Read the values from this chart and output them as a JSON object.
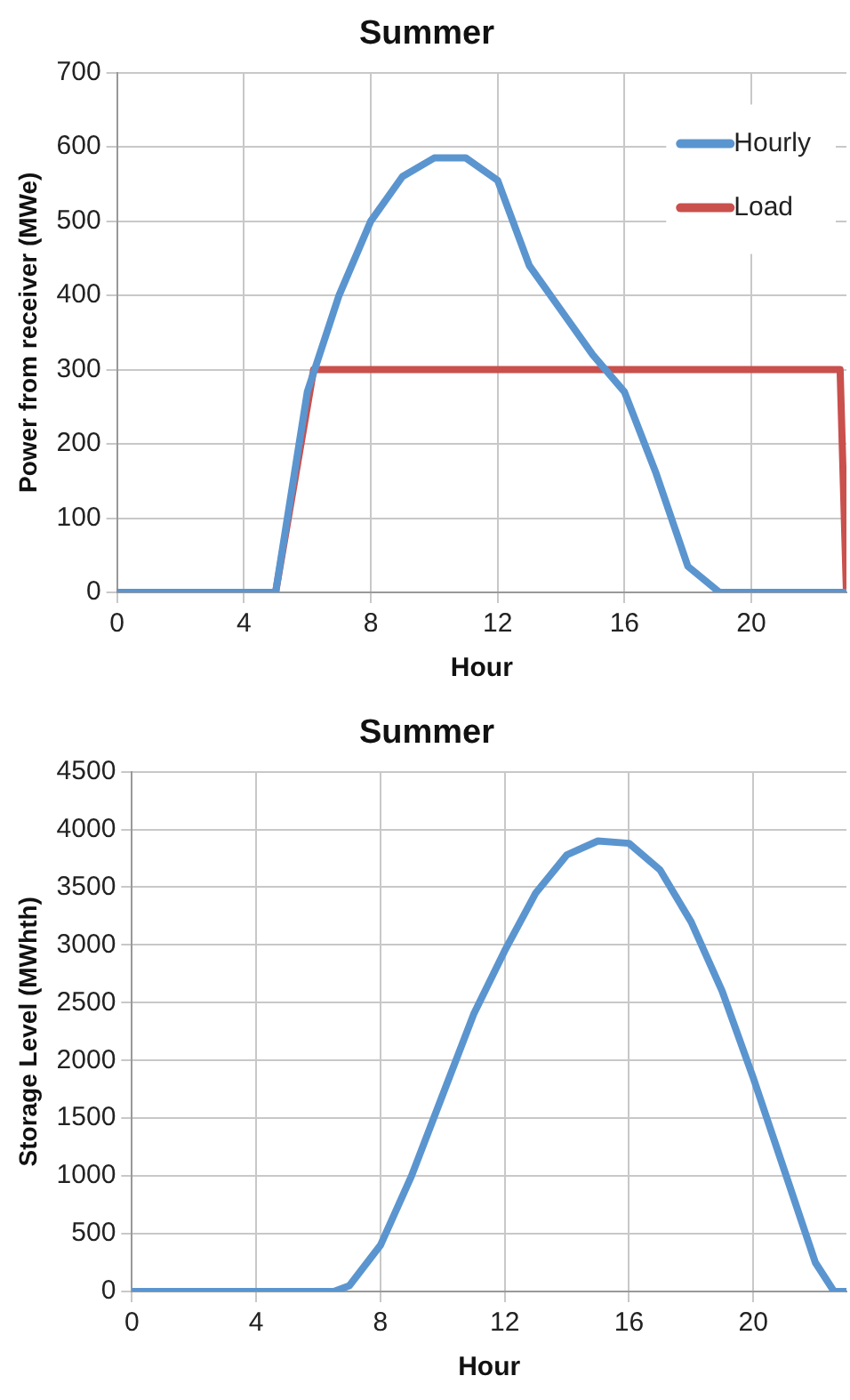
{
  "chart_data": [
    {
      "type": "line",
      "title": "Summer",
      "xlabel": "Hour",
      "ylabel": "Power from receiver (MWe)",
      "xlim": [
        0,
        23
      ],
      "xticks": [
        0,
        4,
        8,
        12,
        16,
        20
      ],
      "ylim": [
        0,
        700
      ],
      "yticks": [
        0,
        100,
        200,
        300,
        400,
        500,
        600,
        700
      ],
      "grid": true,
      "legend": "top right",
      "marker": "none",
      "line_style": "solid",
      "series": [
        {
          "name": "Hourly",
          "color": "#5b95cf",
          "x": [
            0,
            1,
            2,
            3,
            4,
            5,
            6,
            7,
            8,
            9,
            10,
            11,
            12,
            13,
            14,
            15,
            16,
            17,
            18,
            19,
            20,
            21,
            22,
            23
          ],
          "values": [
            0,
            0,
            0,
            0,
            0,
            0,
            270,
            400,
            500,
            560,
            585,
            585,
            555,
            440,
            380,
            320,
            270,
            160,
            35,
            0,
            0,
            0,
            0,
            0
          ]
        },
        {
          "name": "Load",
          "color": "#c9504c",
          "x": [
            0,
            5,
            6.2,
            22.8,
            23
          ],
          "values": [
            0,
            0,
            300,
            300,
            0
          ]
        }
      ]
    },
    {
      "type": "line",
      "title": "Summer",
      "xlabel": "Hour",
      "ylabel": "Storage Level (MWhth)",
      "xlim": [
        0,
        23
      ],
      "xticks": [
        0,
        4,
        8,
        12,
        16,
        20
      ],
      "ylim": [
        0,
        4500
      ],
      "yticks": [
        0,
        500,
        1000,
        1500,
        2000,
        2500,
        3000,
        3500,
        4000,
        4500
      ],
      "grid": true,
      "marker": "none",
      "line_style": "solid",
      "series": [
        {
          "color": "#5b95cf",
          "x": [
            0,
            1,
            2,
            3,
            4,
            5,
            6,
            6.5,
            7,
            8,
            9,
            10,
            11,
            12,
            13,
            14,
            15,
            16,
            17,
            18,
            19,
            20,
            21,
            22,
            22.6,
            23
          ],
          "values": [
            0,
            0,
            0,
            0,
            0,
            0,
            0,
            0,
            50,
            400,
            1000,
            1700,
            2400,
            2950,
            3450,
            3780,
            3900,
            3880,
            3650,
            3200,
            2600,
            1850,
            1050,
            250,
            0,
            0
          ]
        }
      ]
    }
  ]
}
